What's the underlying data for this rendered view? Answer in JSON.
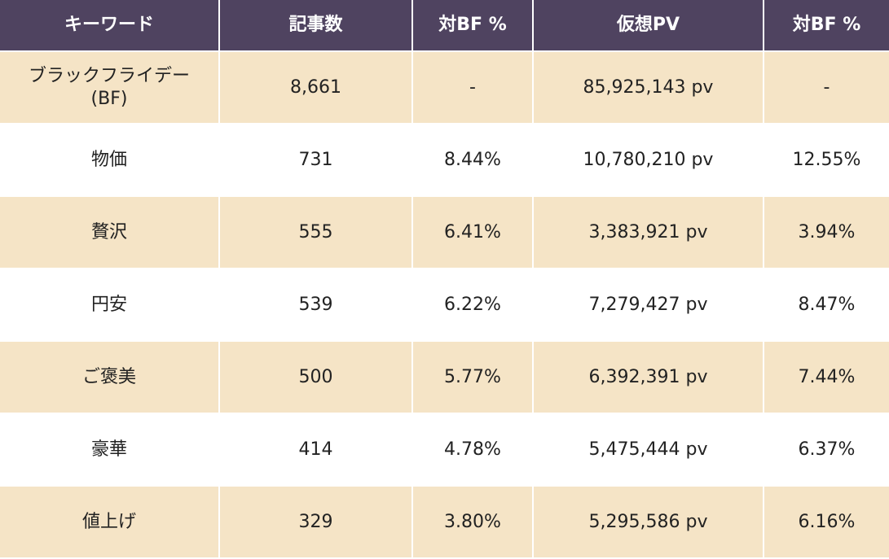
{
  "table": {
    "header": [
      "キーワード",
      "記事数",
      "対BF %",
      "仮想PV",
      "対BF %"
    ],
    "rows": [
      [
        "ブラックフライデー\n(BF)",
        "8,661",
        "-",
        "85,925,143  pv",
        "-"
      ],
      [
        "物価",
        "731",
        "8.44%",
        "10,780,210  pv",
        "12.55%"
      ],
      [
        "贅沢",
        "555",
        "6.41%",
        "3,383,921  pv",
        "3.94%"
      ],
      [
        "円安",
        "539",
        "6.22%",
        "7,279,427  pv",
        "8.47%"
      ],
      [
        "ご褒美",
        "500",
        "5.77%",
        "6,392,391  pv",
        "7.44%"
      ],
      [
        "豪華",
        "414",
        "4.78%",
        "5,475,444 pv",
        "6.37%"
      ],
      [
        "値上げ",
        "329",
        "3.80%",
        "5,295,586  pv",
        "6.16%"
      ]
    ]
  }
}
